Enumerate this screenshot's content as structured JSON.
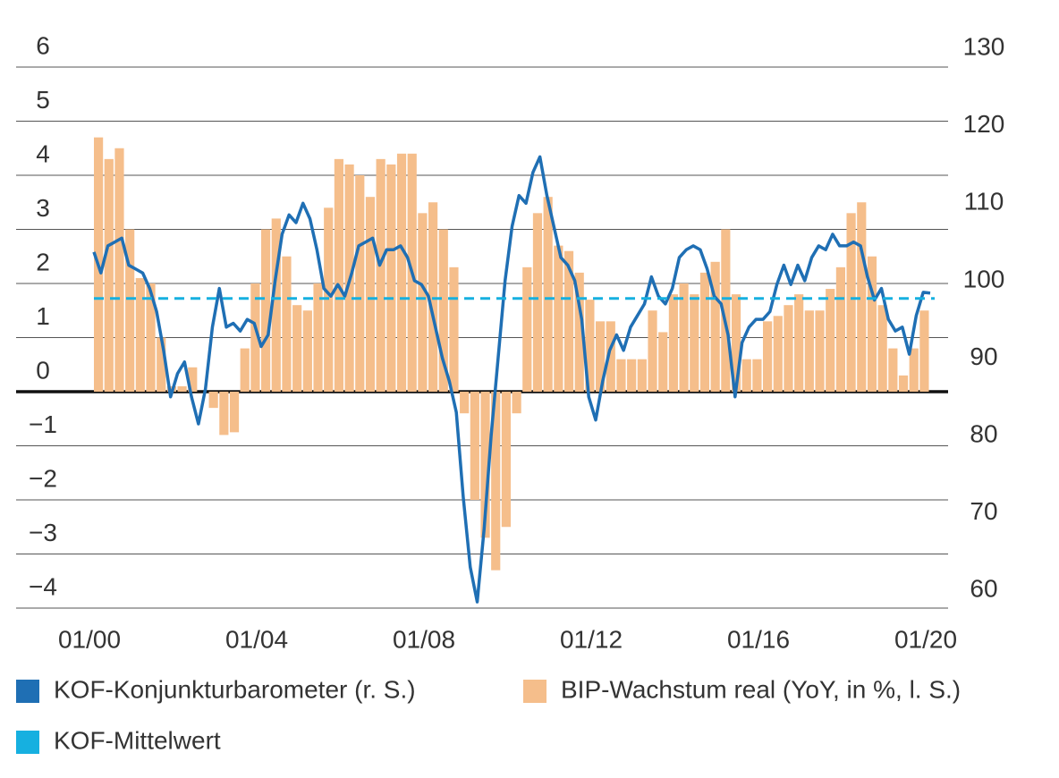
{
  "chart_data": {
    "type": "combo",
    "ylim": [
      -4,
      6
    ],
    "yticks": [
      {
        "value": -4,
        "label": "−4"
      },
      {
        "value": -3,
        "label": "−3"
      },
      {
        "value": -2,
        "label": "−2"
      },
      {
        "value": -1,
        "label": "−1"
      },
      0,
      1,
      2,
      3,
      4,
      5,
      6
    ],
    "y2lim": [
      57.7,
      127.6
    ],
    "y2ticks": [
      60,
      70,
      80,
      90,
      100,
      110,
      120,
      130
    ],
    "xticks": [
      "01/00",
      "01/04",
      "01/08",
      "01/12",
      "01/16",
      "01/20"
    ],
    "grid": true,
    "series": [
      {
        "name": "KOF-Konjunkturbarometer (r. S.)",
        "color": "#1f6fb4",
        "axis": "y2",
        "style": "line",
        "x": [
          "01/00",
          "03/00",
          "05/00",
          "07/00",
          "09/00",
          "11/00",
          "01/01",
          "03/01",
          "05/01",
          "07/01",
          "09/01",
          "11/01",
          "01/02",
          "03/02",
          "05/02",
          "07/02",
          "09/02",
          "11/02",
          "01/03",
          "03/03",
          "05/03",
          "07/03",
          "09/03",
          "11/03",
          "01/04",
          "03/04",
          "05/04",
          "07/04",
          "09/04",
          "11/04",
          "01/05",
          "03/05",
          "05/05",
          "07/05",
          "09/05",
          "11/05",
          "01/06",
          "03/06",
          "05/06",
          "07/06",
          "09/06",
          "11/06",
          "01/07",
          "03/07",
          "05/07",
          "07/07",
          "09/07",
          "11/07",
          "01/08",
          "03/08",
          "05/08",
          "07/08",
          "09/08",
          "11/08",
          "01/09",
          "03/09",
          "05/09",
          "07/09",
          "09/09",
          "11/09",
          "01/10",
          "03/10",
          "05/10",
          "07/10",
          "09/10",
          "11/10",
          "01/11",
          "03/11",
          "05/11",
          "07/11",
          "09/11",
          "11/11",
          "01/12",
          "03/12",
          "05/12",
          "07/12",
          "09/12",
          "11/12",
          "01/13",
          "03/13",
          "05/13",
          "07/13",
          "09/13",
          "11/13",
          "01/14",
          "03/14",
          "05/14",
          "07/14",
          "09/14",
          "11/14",
          "01/15",
          "03/15",
          "05/15",
          "07/15",
          "09/15",
          "11/15",
          "01/16",
          "03/16",
          "05/16",
          "07/16",
          "09/16",
          "11/16",
          "01/17",
          "03/17",
          "05/17",
          "07/17",
          "09/17",
          "11/17",
          "01/18",
          "03/18",
          "05/18",
          "07/18",
          "09/18",
          "11/18",
          "01/19",
          "03/19",
          "05/19",
          "07/19",
          "09/19",
          "11/19",
          "01/20"
        ],
        "values": [
          103.7,
          101,
          104.5,
          105,
          105.5,
          102,
          101.5,
          101,
          99,
          96,
          91,
          85,
          88,
          89.5,
          85,
          81.5,
          86,
          94,
          99,
          94,
          94.5,
          93.5,
          95,
          94.5,
          91.5,
          93,
          100,
          106,
          108.5,
          107.5,
          110,
          108,
          104,
          99,
          98,
          99.5,
          98,
          101,
          104.5,
          105,
          105.5,
          102,
          104,
          104,
          104.5,
          103,
          100,
          99.5,
          98,
          94,
          90,
          87,
          83,
          72,
          63,
          58.5,
          68,
          80,
          90,
          100,
          107,
          111,
          110,
          114,
          116,
          111,
          107,
          103,
          102,
          100,
          95,
          85,
          82,
          87,
          91,
          93,
          91,
          94,
          95.5,
          97,
          100.5,
          98,
          97,
          99,
          103,
          104,
          104.5,
          104,
          101.5,
          98,
          97,
          93,
          85,
          92,
          94,
          95,
          95,
          96,
          99.5,
          102,
          99.5,
          102,
          100,
          103,
          104.5,
          104,
          106,
          104.5,
          104.5,
          105,
          104.5,
          100.5,
          97.5,
          99,
          95,
          93.5,
          94,
          90.5,
          95.5,
          98.5,
          98.4
        ]
      },
      {
        "name": "BIP-Wachstum real (YoY, in %, l. S.)",
        "color": "#f5be8b",
        "style": "bar",
        "x": [
          "01/00",
          "04/00",
          "07/00",
          "10/00",
          "01/01",
          "04/01",
          "07/01",
          "10/01",
          "01/02",
          "04/02",
          "07/02",
          "10/02",
          "01/03",
          "04/03",
          "07/03",
          "10/03",
          "01/04",
          "04/04",
          "07/04",
          "10/04",
          "01/05",
          "04/05",
          "07/05",
          "10/05",
          "01/06",
          "04/06",
          "07/06",
          "10/06",
          "01/07",
          "04/07",
          "07/07",
          "10/07",
          "01/08",
          "04/08",
          "07/08",
          "10/08",
          "01/09",
          "04/09",
          "07/09",
          "10/09",
          "01/10",
          "04/10",
          "07/10",
          "10/10",
          "01/11",
          "04/11",
          "07/11",
          "10/11",
          "01/12",
          "04/12",
          "07/12",
          "10/12",
          "01/13",
          "04/13",
          "07/13",
          "10/13",
          "01/14",
          "04/14",
          "07/14",
          "10/14",
          "01/15",
          "04/15",
          "07/15",
          "10/15",
          "01/16",
          "04/16",
          "07/16",
          "10/16",
          "01/17",
          "04/17",
          "07/17",
          "10/17",
          "01/18",
          "04/18",
          "07/18",
          "10/18",
          "01/19",
          "04/19",
          "07/19",
          "10/19"
        ],
        "values": [
          4.7,
          4.3,
          4.5,
          3.0,
          2.1,
          2.0,
          1.0,
          0.1,
          0.1,
          0.45,
          0.0,
          -0.3,
          -0.8,
          -0.75,
          0.8,
          2.0,
          3.0,
          3.2,
          2.5,
          1.6,
          1.5,
          2.0,
          3.4,
          4.3,
          4.2,
          4.0,
          3.6,
          4.3,
          4.2,
          4.4,
          4.4,
          3.3,
          3.5,
          3.0,
          2.3,
          -0.4,
          -2.0,
          -2.7,
          -3.3,
          -2.5,
          -0.4,
          2.3,
          3.3,
          3.6,
          2.7,
          2.6,
          2.2,
          1.7,
          1.3,
          1.3,
          0.6,
          0.6,
          0.6,
          1.5,
          1.1,
          1.8,
          2.0,
          1.8,
          2.2,
          2.4,
          3.0,
          1.8,
          0.6,
          0.6,
          1.3,
          1.4,
          1.6,
          1.8,
          1.5,
          1.5,
          1.9,
          2.3,
          3.3,
          3.5,
          2.5,
          1.6,
          0.8,
          0.3,
          0.8,
          1.5
        ]
      },
      {
        "name": "KOF-Mittelwert",
        "color": "#16b0e0",
        "axis": "y2",
        "style": "dashed",
        "value": 97.7
      }
    ]
  }
}
